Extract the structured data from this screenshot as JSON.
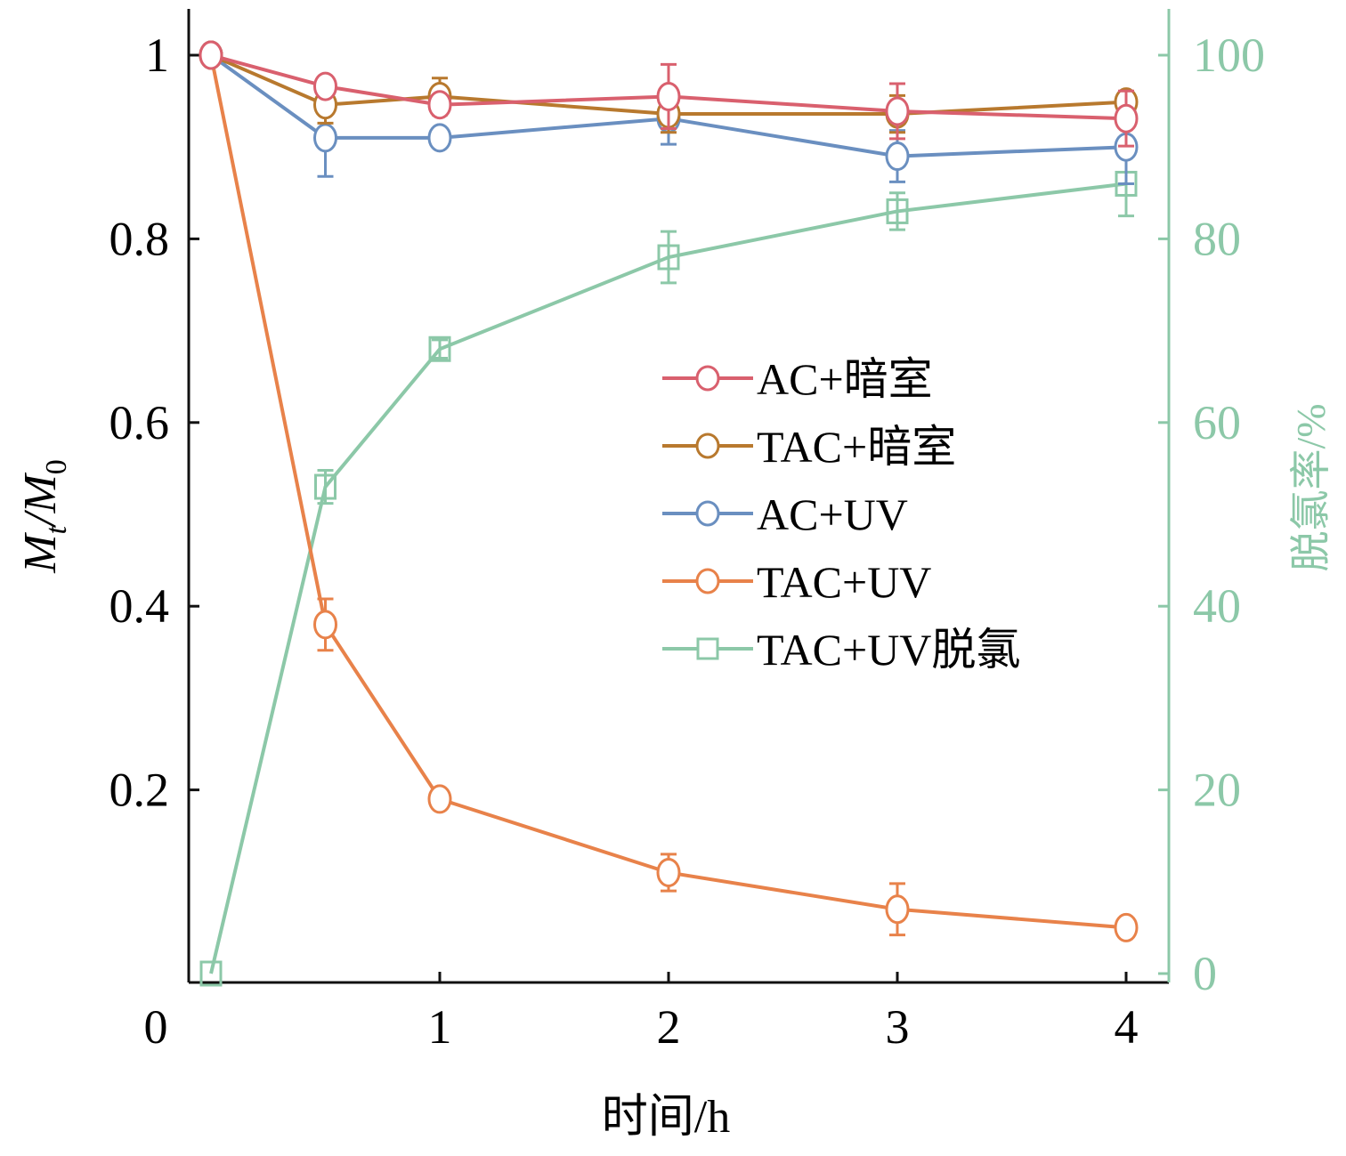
{
  "chart_data": {
    "type": "line",
    "xlabel": "时间/h",
    "ylabel_main": "M",
    "ylabel_sub1": "t",
    "ylabel_mid": "/M",
    "ylabel_sub2": "0",
    "y2label": "脱氯率/%",
    "xlim": [
      0,
      4.2
    ],
    "ylim": [
      0,
      1
    ],
    "y2lim": [
      0,
      100
    ],
    "x_ticks": [
      0,
      1,
      2,
      3,
      4
    ],
    "x_tick_labels": [
      "0",
      "1",
      "2",
      "3",
      "4"
    ],
    "y_ticks": [
      0.2,
      0.4,
      0.6,
      0.8,
      1
    ],
    "y_tick_labels": [
      "0.2",
      "0.4",
      "0.6",
      "0.8",
      "1"
    ],
    "y2_ticks": [
      0,
      20,
      40,
      60,
      80,
      100
    ],
    "y2_tick_labels": [
      "0",
      "20",
      "40",
      "60",
      "80",
      "100"
    ],
    "x": [
      0,
      0.5,
      1,
      2,
      3,
      4
    ],
    "legend_position": "center-right",
    "series": [
      {
        "name": "AC+暗室",
        "axis": "left",
        "marker": "circle",
        "color": "#d9606e",
        "values": [
          1,
          0.966,
          0.946,
          0.955,
          0.939,
          0.931
        ],
        "err": [
          0,
          0.008,
          0.01,
          0.035,
          0.03,
          0.03
        ]
      },
      {
        "name": "TAC+暗室",
        "axis": "left",
        "marker": "circle",
        "color": "#b8792e",
        "values": [
          1,
          0.946,
          0.955,
          0.936,
          0.936,
          0.949
        ],
        "err": [
          0,
          0.02,
          0.02,
          0.02,
          0.02,
          0.01
        ]
      },
      {
        "name": "AC+UV",
        "axis": "left",
        "marker": "circle",
        "color": "#6a8fc0",
        "values": [
          1,
          0.91,
          0.91,
          0.931,
          0.89,
          0.9
        ],
        "err": [
          0,
          0.042,
          0.01,
          0.028,
          0.028,
          0.04
        ]
      },
      {
        "name": "TAC+UV",
        "axis": "left",
        "marker": "circle",
        "color": "#e8824a",
        "values": [
          1,
          0.38,
          0.19,
          0.11,
          0.07,
          0.05
        ],
        "err": [
          0,
          0.028,
          0.01,
          0.02,
          0.028,
          0.008
        ]
      },
      {
        "name": "TAC+UV脱氯",
        "axis": "right",
        "marker": "square",
        "color": "#8cc8a8",
        "values": [
          0,
          53,
          68,
          78,
          83,
          86
        ],
        "err": [
          0,
          1.8,
          1,
          2.8,
          2,
          3.5
        ]
      }
    ]
  },
  "colors": {
    "axis": "#111111",
    "right_axis": "#8cc8a8"
  }
}
